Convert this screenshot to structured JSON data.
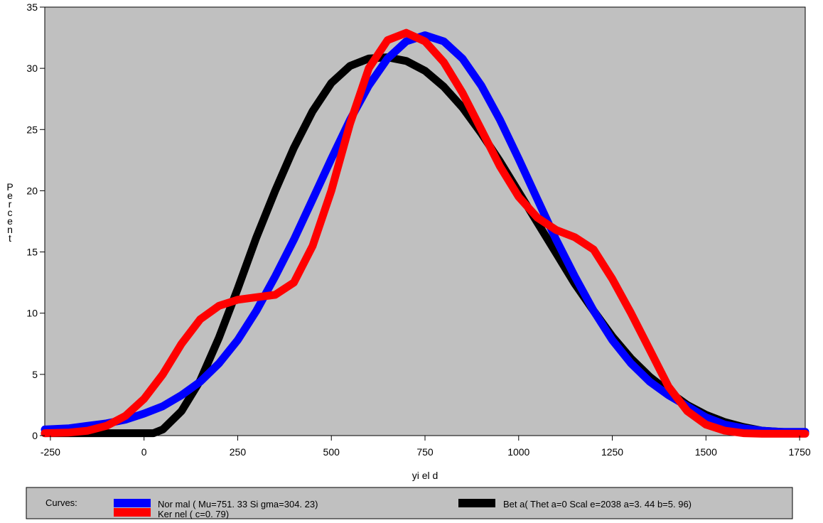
{
  "chart_data": {
    "type": "line",
    "xlabel": "yi el d",
    "ylabel": "Percent",
    "xlim": [
      -265,
      1765
    ],
    "ylim": [
      0,
      35
    ],
    "xticks": [
      -250,
      0,
      250,
      500,
      750,
      1000,
      1250,
      1500,
      1750
    ],
    "xtick_labels": [
      "-250",
      "0",
      "250",
      "500",
      "750",
      "1000",
      "1250",
      "1500",
      "1750"
    ],
    "yticks": [
      0,
      5,
      10,
      15,
      20,
      25,
      30,
      35
    ],
    "ytick_labels": [
      "0",
      "5",
      "10",
      "15",
      "20",
      "25",
      "30",
      "35"
    ],
    "plot_background": "#c0c0c0",
    "grid": false,
    "legend_position": "bottom",
    "legend_title": "Curves:",
    "series": [
      {
        "name": "Nor mal ( Mu=751. 33 Si gma=304. 23)",
        "color": "#0000ff",
        "x": [
          -265,
          -200,
          -150,
          -100,
          -50,
          0,
          50,
          100,
          150,
          200,
          250,
          300,
          350,
          400,
          450,
          500,
          550,
          600,
          650,
          700,
          750,
          800,
          850,
          900,
          950,
          1000,
          1050,
          1100,
          1150,
          1200,
          1250,
          1300,
          1350,
          1400,
          1450,
          1500,
          1550,
          1600,
          1650,
          1700,
          1765
        ],
        "y": [
          0.5,
          0.6,
          0.8,
          1.0,
          1.3,
          1.8,
          2.4,
          3.3,
          4.4,
          5.9,
          7.8,
          10.2,
          13.0,
          16.0,
          19.3,
          22.6,
          25.8,
          28.6,
          30.8,
          32.2,
          32.7,
          32.2,
          30.8,
          28.6,
          25.8,
          22.6,
          19.3,
          16.0,
          13.0,
          10.2,
          7.8,
          5.9,
          4.4,
          3.3,
          2.4,
          1.5,
          0.9,
          0.6,
          0.4,
          0.3,
          0.3
        ]
      },
      {
        "name": "Ker nel ( c=0. 79)",
        "color": "#ff0000",
        "x": [
          -265,
          -200,
          -150,
          -100,
          -50,
          0,
          50,
          100,
          150,
          200,
          250,
          300,
          350,
          400,
          450,
          500,
          550,
          600,
          650,
          700,
          750,
          800,
          850,
          900,
          950,
          1000,
          1050,
          1100,
          1150,
          1200,
          1250,
          1300,
          1350,
          1400,
          1450,
          1500,
          1550,
          1600,
          1650,
          1700,
          1765
        ],
        "y": [
          0.2,
          0.25,
          0.4,
          0.8,
          1.6,
          3.0,
          5.0,
          7.5,
          9.5,
          10.6,
          11.1,
          11.3,
          11.5,
          12.5,
          15.5,
          20.0,
          25.5,
          30.0,
          32.3,
          32.9,
          32.2,
          30.5,
          28.0,
          25.0,
          22.0,
          19.5,
          17.8,
          16.8,
          16.2,
          15.2,
          12.8,
          10.0,
          7.0,
          4.0,
          2.0,
          0.9,
          0.4,
          0.2,
          0.15,
          0.15,
          0.15
        ]
      },
      {
        "name": "Bet a( Thet a=0 Scal e=2038 a=3. 44 b=5. 96)",
        "color": "#000000",
        "x": [
          -265,
          -200,
          -100,
          0,
          25,
          50,
          100,
          150,
          200,
          250,
          300,
          350,
          400,
          450,
          500,
          550,
          600,
          650,
          700,
          750,
          800,
          850,
          900,
          950,
          1000,
          1050,
          1100,
          1150,
          1200,
          1250,
          1300,
          1350,
          1400,
          1450,
          1500,
          1550,
          1600,
          1650,
          1700,
          1765
        ],
        "y": [
          0.2,
          0.2,
          0.2,
          0.2,
          0.2,
          0.5,
          2.0,
          4.5,
          8.0,
          12.0,
          16.2,
          20.0,
          23.5,
          26.5,
          28.8,
          30.2,
          30.8,
          30.9,
          30.6,
          29.8,
          28.5,
          26.8,
          24.7,
          22.4,
          19.9,
          17.4,
          14.9,
          12.4,
          10.2,
          8.1,
          6.3,
          4.8,
          3.6,
          2.5,
          1.7,
          1.1,
          0.7,
          0.4,
          0.3,
          0.2
        ]
      }
    ]
  }
}
